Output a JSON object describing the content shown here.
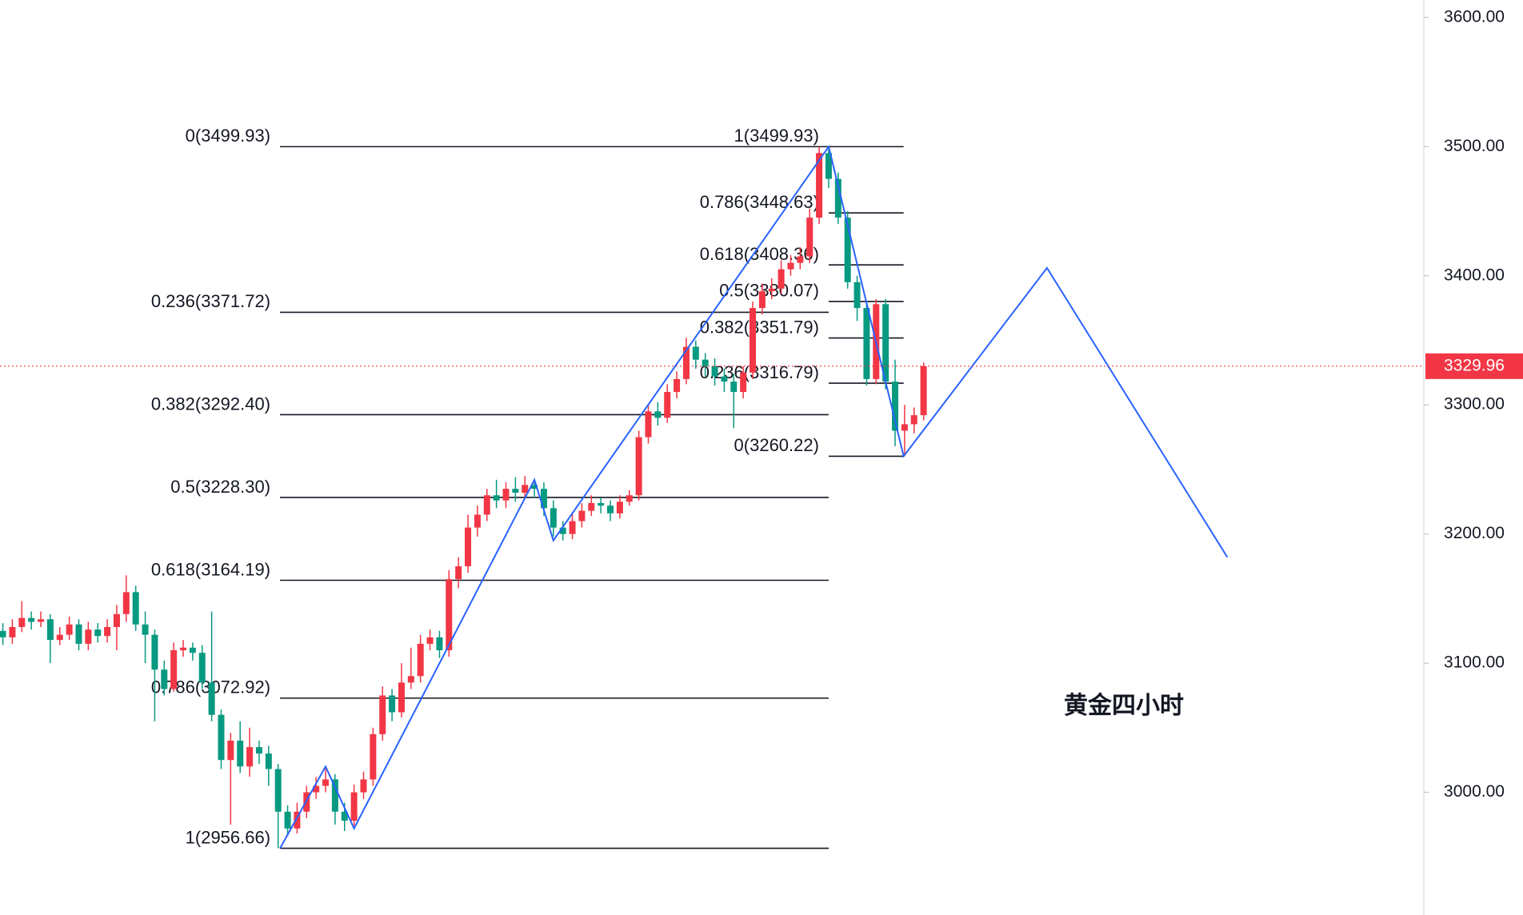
{
  "chart_data": {
    "type": "candlestick",
    "annotation": "黄金四小时",
    "up_color": "#f23645",
    "down_color": "#089981",
    "xlim": [
      -0.3,
      149.7
    ],
    "ylim": [
      2905,
      3613.5
    ],
    "yticks": [
      {
        "value": 3000,
        "label": "3000.00"
      },
      {
        "value": 3100,
        "label": "3100.00"
      },
      {
        "value": 3200,
        "label": "3200.00"
      },
      {
        "value": 3300,
        "label": "3300.00"
      },
      {
        "value": 3400,
        "label": "3400.00"
      },
      {
        "value": 3500,
        "label": "3500.00"
      },
      {
        "value": 3600,
        "label": "3600.00"
      }
    ],
    "last_price": 3329.96,
    "candles": {
      "open": [
        3125,
        3120,
        3128,
        3135,
        3132,
        3134,
        3118,
        3122,
        3130,
        3115,
        3126,
        3121,
        3128,
        3138,
        3155,
        3130,
        3122,
        3095,
        3080,
        3110,
        3112,
        3108,
        3085,
        3060,
        3025,
        3040,
        3020,
        3035,
        3030,
        3018,
        2985,
        2972,
        2985,
        3000,
        3005,
        3010,
        2985,
        2978,
        3000,
        3010,
        3045,
        3075,
        3062,
        3085,
        3090,
        3115,
        3120,
        3110,
        3165,
        3175,
        3205,
        3215,
        3230,
        3226,
        3235,
        3232,
        3238,
        3235,
        3220,
        3205,
        3200,
        3210,
        3218,
        3224,
        3222,
        3216,
        3225,
        3230,
        3275,
        3295,
        3290,
        3310,
        3320,
        3345,
        3335,
        3330,
        3322,
        3318,
        3310,
        3325,
        3375,
        3388,
        3390,
        3405,
        3410,
        3415,
        3445,
        3495,
        3475,
        3445,
        3395,
        3375,
        3320,
        3378,
        3318,
        3280,
        3285,
        3292
      ],
      "high": [
        3131,
        3134,
        3148,
        3140,
        3140,
        3138,
        3128,
        3136,
        3134,
        3132,
        3131,
        3134,
        3145,
        3168,
        3160,
        3140,
        3126,
        3102,
        3116,
        3118,
        3116,
        3114,
        3140,
        3064,
        3046,
        3055,
        3050,
        3040,
        3036,
        3022,
        2990,
        2992,
        3005,
        3012,
        3020,
        3014,
        2992,
        3006,
        3016,
        3050,
        3082,
        3080,
        3100,
        3112,
        3122,
        3126,
        3125,
        3172,
        3182,
        3215,
        3222,
        3235,
        3242,
        3240,
        3244,
        3245,
        3242,
        3240,
        3226,
        3210,
        3216,
        3224,
        3230,
        3228,
        3226,
        3230,
        3234,
        3280,
        3300,
        3302,
        3316,
        3326,
        3352,
        3350,
        3340,
        3336,
        3328,
        3324,
        3330,
        3380,
        3394,
        3398,
        3412,
        3416,
        3422,
        3452,
        3499.93,
        3498,
        3480,
        3450,
        3400,
        3380,
        3382,
        3382,
        3335,
        3300,
        3298,
        3333
      ],
      "low": [
        3114,
        3115,
        3124,
        3126,
        3128,
        3100,
        3114,
        3118,
        3110,
        3110,
        3116,
        3116,
        3110,
        3132,
        3125,
        3100,
        3055,
        3075,
        3078,
        3105,
        3102,
        3080,
        3055,
        3018,
        2975,
        3015,
        3012,
        3022,
        3005,
        2956.66,
        2966,
        2968,
        2980,
        2995,
        3000,
        2975,
        2970,
        2974,
        2995,
        3005,
        3040,
        3055,
        3058,
        3080,
        3085,
        3110,
        3104,
        3105,
        3158,
        3170,
        3198,
        3210,
        3220,
        3220,
        3225,
        3228,
        3228,
        3214,
        3198,
        3195,
        3196,
        3205,
        3214,
        3216,
        3210,
        3212,
        3222,
        3226,
        3270,
        3284,
        3286,
        3305,
        3316,
        3328,
        3322,
        3315,
        3310,
        3282,
        3305,
        3320,
        3370,
        3382,
        3386,
        3400,
        3405,
        3410,
        3440,
        3468,
        3440,
        3390,
        3365,
        3315,
        3316,
        3312,
        3268,
        3260.22,
        3278,
        3288
      ],
      "close": [
        3120,
        3128,
        3135,
        3132,
        3134,
        3118,
        3122,
        3130,
        3115,
        3126,
        3121,
        3128,
        3138,
        3155,
        3130,
        3122,
        3095,
        3080,
        3110,
        3112,
        3108,
        3085,
        3060,
        3025,
        3040,
        3020,
        3035,
        3030,
        3018,
        2985,
        2972,
        2985,
        3000,
        3005,
        3010,
        2985,
        2978,
        3000,
        3010,
        3045,
        3075,
        3062,
        3085,
        3090,
        3115,
        3120,
        3110,
        3165,
        3175,
        3205,
        3215,
        3230,
        3226,
        3235,
        3232,
        3238,
        3235,
        3220,
        3205,
        3200,
        3210,
        3218,
        3224,
        3222,
        3216,
        3225,
        3230,
        3275,
        3295,
        3290,
        3310,
        3320,
        3345,
        3335,
        3330,
        3322,
        3318,
        3310,
        3325,
        3375,
        3388,
        3390,
        3405,
        3410,
        3415,
        3445,
        3495,
        3475,
        3445,
        3395,
        3375,
        3320,
        3378,
        3318,
        3280,
        3285,
        3292,
        3329.96
      ]
    },
    "fib_sets": [
      {
        "x_range": [
          29.2,
          87
        ],
        "levels": [
          {
            "value": 3499.93,
            "label": "0(3499.93)"
          },
          {
            "value": 3371.72,
            "label": "0.236(3371.72)"
          },
          {
            "value": 3292.4,
            "label": "0.382(3292.40)"
          },
          {
            "value": 3228.3,
            "label": "0.5(3228.30)"
          },
          {
            "value": 3164.19,
            "label": "0.618(3164.19)"
          },
          {
            "value": 3072.92,
            "label": "0.786(3072.92)"
          },
          {
            "value": 2956.66,
            "label": "1(2956.66)"
          }
        ]
      },
      {
        "x_range": [
          87,
          94.9
        ],
        "levels": [
          {
            "value": 3499.93,
            "label": "1(3499.93)"
          },
          {
            "value": 3448.63,
            "label": "0.786(3448.63)"
          },
          {
            "value": 3408.36,
            "label": "0.618(3408.36)"
          },
          {
            "value": 3380.07,
            "label": "0.5(3380.07)"
          },
          {
            "value": 3351.79,
            "label": "0.382(3351.79)"
          },
          {
            "value": 3316.79,
            "label": "0.236(3316.79)"
          },
          {
            "value": 3260.22,
            "label": "0(3260.22)"
          }
        ]
      }
    ],
    "zigzag": {
      "color": "#2962ff",
      "x": [
        29.2,
        34,
        37,
        56,
        58,
        87,
        94.9,
        110,
        129
      ],
      "values": [
        2956.66,
        3020,
        2972,
        3242,
        3195,
        3499.93,
        3260.22,
        3406,
        3182
      ]
    }
  }
}
